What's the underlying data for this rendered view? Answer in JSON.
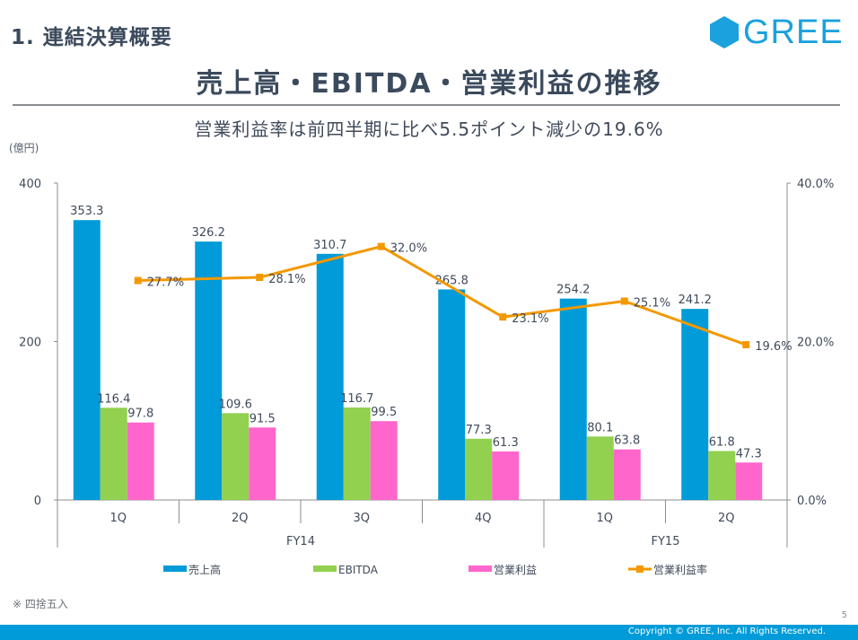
{
  "header": {
    "section_title": "1. 連結決算概要",
    "logo_text": "GREE",
    "page_title": "売上高・EBITDA・営業利益の推移",
    "subtitle": "営業利益率は前四半期に比べ5.5ポイント減少の19.6%"
  },
  "colors": {
    "brand": "#1ba1dd",
    "sales": "#009bd8",
    "ebitda": "#92d050",
    "operating_income": "#ff66cc",
    "margin": "#f39800",
    "text": "#404a5a",
    "axis": "#8a8d91"
  },
  "chart_data": {
    "type": "bar",
    "title": "売上高・EBITDA・営業利益の推移",
    "subtitle": "営業利益率は前四半期に比べ5.5ポイント減少の19.6%",
    "ylabel": "(億円)",
    "ylim": [
      0,
      400
    ],
    "yticks": [
      "0",
      "200",
      "400"
    ],
    "y2lim": [
      0,
      40
    ],
    "y2ticks": [
      "0.0%",
      "20.0%",
      "40.0%"
    ],
    "categories": [
      "1Q",
      "2Q",
      "3Q",
      "4Q",
      "1Q",
      "2Q"
    ],
    "groups": [
      {
        "label": "FY14",
        "span": 4
      },
      {
        "label": "FY15",
        "span": 2
      }
    ],
    "series": [
      {
        "name": "売上高",
        "kind": "bar",
        "axis": "left",
        "color": "#009bd8",
        "values": [
          353.3,
          326.2,
          310.7,
          265.8,
          254.2,
          241.2
        ],
        "labels": [
          "353.3",
          "326.2",
          "310.7",
          "265.8",
          "254.2",
          "241.2"
        ]
      },
      {
        "name": "EBITDA",
        "kind": "bar",
        "axis": "left",
        "color": "#92d050",
        "values": [
          116.4,
          109.6,
          116.7,
          77.3,
          80.1,
          61.8
        ],
        "labels": [
          "116.4",
          "109.6",
          "116.7",
          "77.3",
          "80.1",
          "61.8"
        ]
      },
      {
        "name": "営業利益",
        "kind": "bar",
        "axis": "left",
        "color": "#ff66cc",
        "values": [
          97.8,
          91.5,
          99.5,
          61.3,
          63.8,
          47.3
        ],
        "labels": [
          "97.8",
          "91.5",
          "99.5",
          "61.3",
          "63.8",
          "47.3"
        ]
      },
      {
        "name": "営業利益率",
        "kind": "line",
        "axis": "right",
        "color": "#f39800",
        "values": [
          27.7,
          28.1,
          32.0,
          23.1,
          25.1,
          19.6
        ],
        "labels": [
          "27.7%",
          "28.1%",
          "32.0%",
          "23.1%",
          "25.1%",
          "19.6%"
        ]
      }
    ],
    "legend": [
      "売上高",
      "EBITDA",
      "営業利益",
      "営業利益率"
    ],
    "legend_position": "bottom",
    "grid": false
  },
  "footer": {
    "note": "※  四捨五入",
    "page_number": "5",
    "copyright": "Copyright © GREE, Inc. All Rights Reserved."
  }
}
